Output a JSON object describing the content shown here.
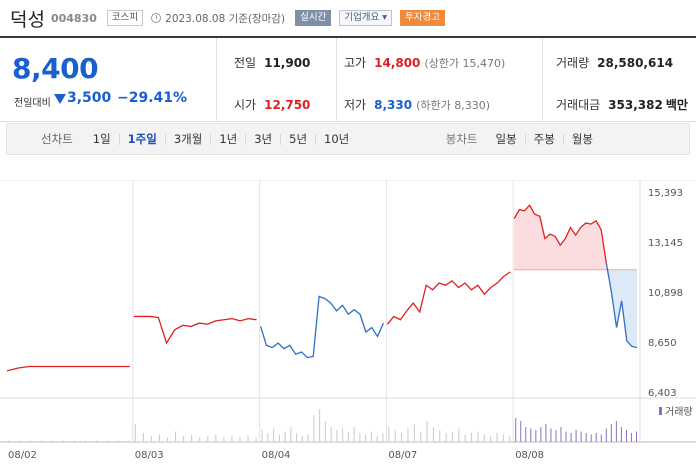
{
  "header": {
    "stock_name": "덕성",
    "stock_code": "004830",
    "market": "코스피",
    "date_text": "2023.08.08  기준(장마감)",
    "realtime_label": "실시간",
    "company_label": "기업개요 ▾",
    "warning_label": "투자경고"
  },
  "summary": {
    "price": "8,400",
    "change_label": "전일대비",
    "change_amount": "3,500",
    "change_rate": "−29.41%",
    "prev_close_label": "전일",
    "prev_close": "11,900",
    "high_label": "고가",
    "high": "14,800",
    "upper_limit": "(상한가 15,470)",
    "volume_label": "거래량",
    "volume": "28,580,614",
    "open_label": "시가",
    "open": "12,750",
    "low_label": "저가",
    "low": "8,330",
    "lower_limit": "(하한가 8,330)",
    "trade_value_label": "거래대금",
    "trade_value": "353,382",
    "trade_value_unit": "백만"
  },
  "controls": {
    "line_chart_label": "선차트",
    "periods": [
      "1일",
      "1주일",
      "3개월",
      "1년",
      "3년",
      "5년",
      "10년"
    ],
    "active_period_index": 1,
    "candle_label": "봉차트",
    "candles": [
      "일봉",
      "주봉",
      "월봉"
    ]
  },
  "colors": {
    "up": "#e02020",
    "down": "#2e6fc4",
    "up_fill": "#fbdde0",
    "down_fill": "#dde9f7",
    "volume": "#c9c9c9",
    "volume_today": "#8a6fc0"
  },
  "chart_data": {
    "type": "line",
    "y_ticks": [
      "15,393",
      "13,145",
      "10,898",
      "8,650",
      "6,403"
    ],
    "ylim": [
      6403,
      15393
    ],
    "x_ticks": [
      "08/02",
      "08/03",
      "08/04",
      "08/07",
      "08/08"
    ],
    "volume_legend": "거래량",
    "prev_close_reference": 11900,
    "days": [
      {
        "date": "08/02",
        "color": "up",
        "values": [
          7350,
          7480,
          7550,
          7550,
          7550,
          7550,
          7550,
          7550,
          7550,
          7550,
          7550,
          7550
        ]
      },
      {
        "date": "08/03",
        "color": "up",
        "values": [
          9800,
          9800,
          9800,
          9750,
          8600,
          9200,
          9400,
          9350,
          9500,
          9450,
          9600,
          9650,
          9700,
          9600,
          9700,
          9650
        ]
      },
      {
        "date": "08/04",
        "color": "mixed",
        "values": [
          9350,
          8500,
          8400,
          8600,
          8350,
          8500,
          8100,
          8200,
          7950,
          8000,
          10700,
          10600,
          10400,
          10050,
          10300,
          9900,
          10100,
          9900,
          9100,
          9300,
          8900,
          9500
        ]
      },
      {
        "date": "08/07",
        "color": "up",
        "values": [
          9450,
          9800,
          9650,
          10050,
          10400,
          10000,
          11200,
          11000,
          11300,
          11200,
          11400,
          11100,
          11300,
          11000,
          11200,
          10800,
          11100,
          11300,
          11600,
          11800
        ]
      },
      {
        "date": "08/08",
        "color": "mixed",
        "values": [
          14200,
          14600,
          14550,
          14800,
          14400,
          14300,
          13300,
          13500,
          13400,
          13000,
          13300,
          13800,
          13450,
          13800,
          14000,
          13950,
          14100,
          13700,
          12200,
          10900,
          9300,
          10500,
          8700,
          8450,
          8400
        ]
      }
    ],
    "volumes": [
      [
        1,
        1,
        1,
        1,
        1,
        1,
        1,
        1,
        1,
        1,
        1,
        1
      ],
      [
        12,
        6,
        4,
        5,
        3,
        7,
        4,
        5,
        3,
        4,
        5,
        3,
        4,
        3,
        4,
        3
      ],
      [
        8,
        6,
        9,
        5,
        7,
        10,
        6,
        4,
        5,
        18,
        22,
        14,
        10,
        8,
        9,
        7,
        10,
        6,
        5,
        7,
        4,
        6
      ],
      [
        10,
        8,
        6,
        9,
        12,
        7,
        14,
        10,
        8,
        6,
        7,
        9,
        5,
        6,
        7,
        5,
        4,
        6,
        5,
        4
      ],
      [
        16,
        14,
        10,
        9,
        8,
        10,
        12,
        9,
        8,
        10,
        7,
        6,
        8,
        7,
        6,
        5,
        6,
        5,
        9,
        12,
        14,
        10,
        8,
        6,
        7
      ]
    ]
  }
}
